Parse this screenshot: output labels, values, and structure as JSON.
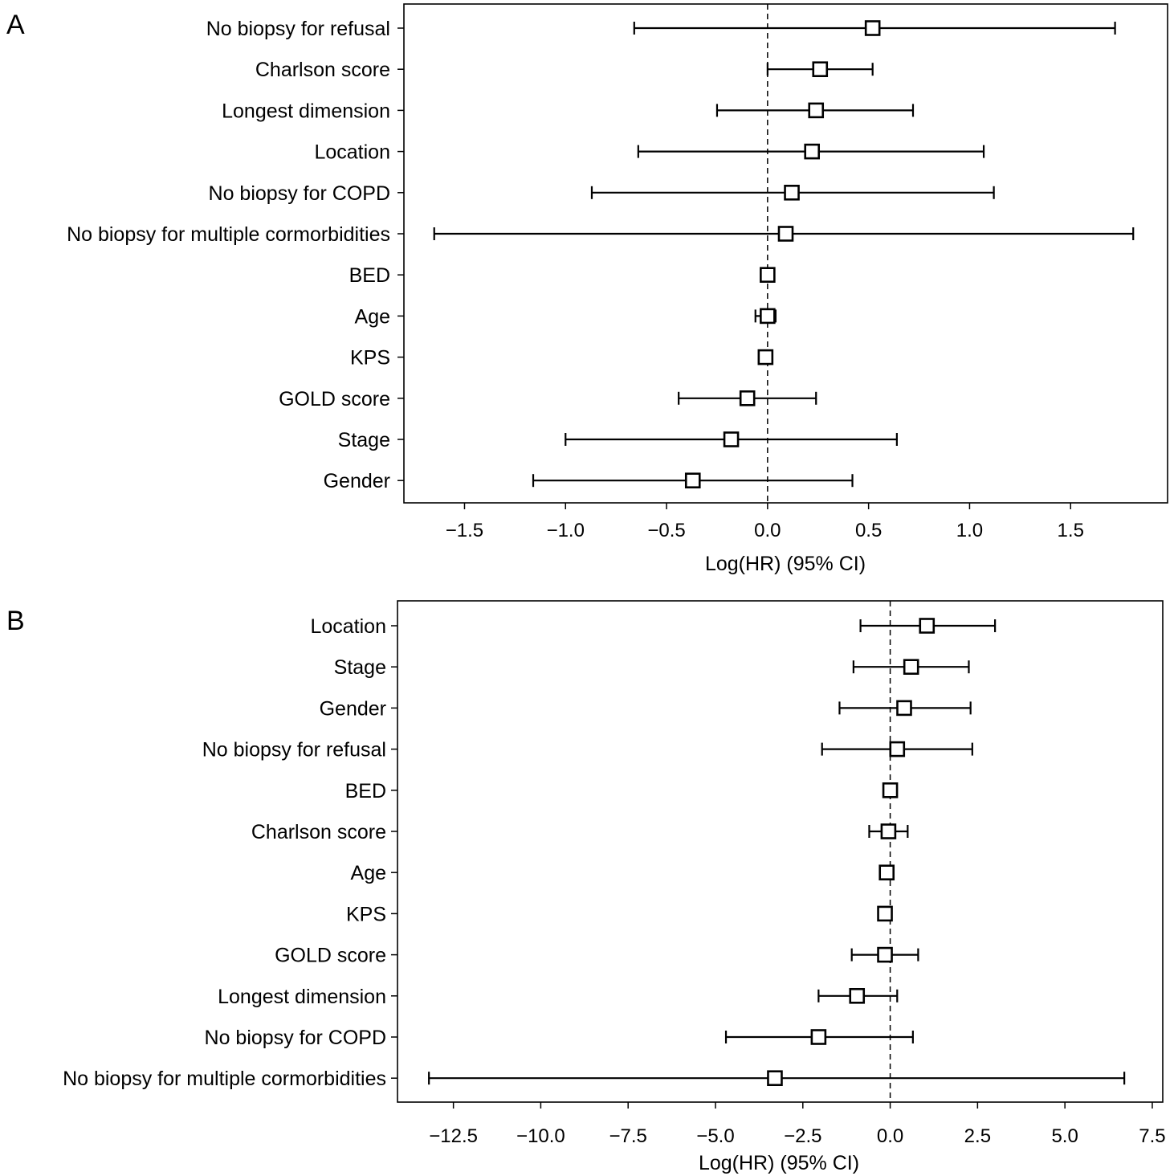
{
  "chart_data": [
    {
      "type": "forest",
      "panel": "A",
      "xlabel": "Log(HR) (95% CI)",
      "xlim": [
        -1.8,
        1.98
      ],
      "xticks": [
        -1.5,
        -1.0,
        -0.5,
        0.0,
        0.5,
        1.0,
        1.5
      ],
      "tick_labels": [
        "−1.5",
        "−1.0",
        "−0.5",
        "0.0",
        "0.5",
        "1.0",
        "1.5"
      ],
      "reference_line": 0,
      "rows": [
        {
          "label": "No biopsy for refusal",
          "estimate": 0.52,
          "lower": -0.66,
          "upper": 1.72
        },
        {
          "label": "Charlson score",
          "estimate": 0.26,
          "lower": 0.0,
          "upper": 0.52
        },
        {
          "label": "Longest dimension",
          "estimate": 0.24,
          "lower": -0.25,
          "upper": 0.72
        },
        {
          "label": "Location",
          "estimate": 0.22,
          "lower": -0.64,
          "upper": 1.07
        },
        {
          "label": "No biopsy for COPD",
          "estimate": 0.12,
          "lower": -0.87,
          "upper": 1.12
        },
        {
          "label": "No biopsy for multiple cormorbidities",
          "estimate": 0.09,
          "lower": -1.65,
          "upper": 1.81
        },
        {
          "label": "BED",
          "estimate": 0.0,
          "lower": -0.01,
          "upper": 0.01
        },
        {
          "label": "Age",
          "estimate": 0.0,
          "lower": -0.06,
          "upper": 0.04
        },
        {
          "label": "KPS",
          "estimate": -0.01,
          "lower": -0.02,
          "upper": 0.0
        },
        {
          "label": "GOLD score",
          "estimate": -0.1,
          "lower": -0.44,
          "upper": 0.24
        },
        {
          "label": "Stage",
          "estimate": -0.18,
          "lower": -1.0,
          "upper": 0.64
        },
        {
          "label": "Gender",
          "estimate": -0.37,
          "lower": -1.16,
          "upper": 0.42
        }
      ]
    },
    {
      "type": "forest",
      "panel": "B",
      "xlabel": "Log(HR) (95% CI)",
      "xlim": [
        -14.1,
        7.8
      ],
      "xticks": [
        -12.5,
        -10.0,
        -7.5,
        -5.0,
        -2.5,
        0.0,
        2.5,
        5.0,
        7.5
      ],
      "tick_labels": [
        "−12.5",
        "−10.0",
        "−7.5",
        "−5.0",
        "−2.5",
        "0.0",
        "2.5",
        "5.0",
        "7.5"
      ],
      "reference_line": 0,
      "rows": [
        {
          "label": "Location",
          "estimate": 1.05,
          "lower": -0.85,
          "upper": 3.0
        },
        {
          "label": "Stage",
          "estimate": 0.6,
          "lower": -1.05,
          "upper": 2.25
        },
        {
          "label": "Gender",
          "estimate": 0.4,
          "lower": -1.45,
          "upper": 2.3
        },
        {
          "label": "No biopsy for refusal",
          "estimate": 0.2,
          "lower": -1.95,
          "upper": 2.35
        },
        {
          "label": "BED",
          "estimate": 0.0,
          "lower": -0.05,
          "upper": 0.05
        },
        {
          "label": "Charlson score",
          "estimate": -0.05,
          "lower": -0.6,
          "upper": 0.5
        },
        {
          "label": "Age",
          "estimate": -0.1,
          "lower": -0.2,
          "upper": 0.0
        },
        {
          "label": "KPS",
          "estimate": -0.15,
          "lower": -0.2,
          "upper": -0.1
        },
        {
          "label": "GOLD score",
          "estimate": -0.15,
          "lower": -1.1,
          "upper": 0.8
        },
        {
          "label": "Longest dimension",
          "estimate": -0.95,
          "lower": -2.05,
          "upper": 0.2
        },
        {
          "label": "No biopsy for COPD",
          "estimate": -2.05,
          "lower": -4.7,
          "upper": 0.65
        },
        {
          "label": "No biopsy for multiple cormorbidities",
          "estimate": -3.3,
          "lower": -13.2,
          "upper": 6.7
        }
      ]
    }
  ]
}
